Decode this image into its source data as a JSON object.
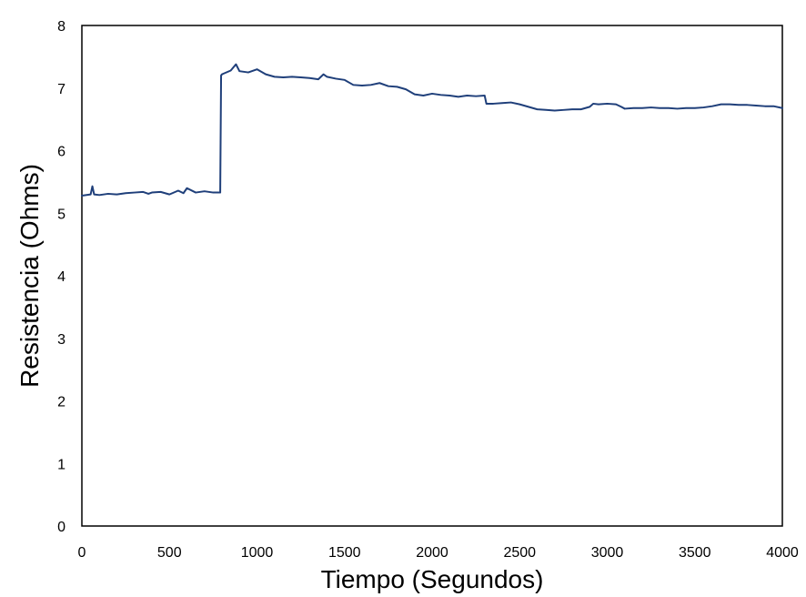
{
  "chart_data": {
    "type": "line",
    "title": "",
    "xlabel": "Tiempo (Segundos)",
    "ylabel": "Resistencia (Ohms)",
    "xlim": [
      0,
      4000
    ],
    "ylim": [
      0,
      8
    ],
    "x_ticks": [
      "0",
      "500",
      "1000",
      "1500",
      "2000",
      "2500",
      "3000",
      "3500",
      "4000"
    ],
    "y_ticks": [
      "0",
      "1",
      "2",
      "3",
      "4",
      "5",
      "6",
      "7",
      "8"
    ],
    "grid": false,
    "legend": "none",
    "series": [
      {
        "color": "#1f3f7a",
        "x": [
          0,
          50,
          60,
          70,
          100,
          150,
          200,
          250,
          300,
          350,
          380,
          400,
          450,
          500,
          550,
          580,
          600,
          650,
          700,
          750,
          790,
          795,
          800,
          850,
          880,
          900,
          950,
          1000,
          1050,
          1100,
          1150,
          1200,
          1250,
          1300,
          1350,
          1380,
          1400,
          1450,
          1500,
          1550,
          1600,
          1650,
          1700,
          1750,
          1800,
          1850,
          1900,
          1950,
          2000,
          2050,
          2100,
          2150,
          2200,
          2250,
          2300,
          2310,
          2350,
          2400,
          2450,
          2500,
          2550,
          2600,
          2650,
          2700,
          2750,
          2800,
          2850,
          2900,
          2920,
          2950,
          3000,
          3050,
          3080,
          3100,
          3150,
          3200,
          3250,
          3300,
          3350,
          3400,
          3450,
          3500,
          3550,
          3600,
          3650,
          3700,
          3750,
          3800,
          3850,
          3900,
          3950,
          4000
        ],
        "y": [
          5.28,
          5.3,
          5.43,
          5.3,
          5.29,
          5.31,
          5.3,
          5.32,
          5.33,
          5.34,
          5.31,
          5.33,
          5.34,
          5.3,
          5.36,
          5.32,
          5.4,
          5.33,
          5.35,
          5.33,
          5.33,
          7.2,
          7.22,
          7.28,
          7.38,
          7.27,
          7.25,
          7.3,
          7.22,
          7.18,
          7.17,
          7.18,
          7.17,
          7.16,
          7.14,
          7.22,
          7.18,
          7.15,
          7.13,
          7.05,
          7.04,
          7.05,
          7.08,
          7.03,
          7.02,
          6.98,
          6.9,
          6.88,
          6.91,
          6.89,
          6.88,
          6.86,
          6.88,
          6.87,
          6.88,
          6.75,
          6.75,
          6.76,
          6.77,
          6.74,
          6.7,
          6.66,
          6.65,
          6.64,
          6.65,
          6.66,
          6.66,
          6.7,
          6.75,
          6.74,
          6.75,
          6.74,
          6.7,
          6.67,
          6.68,
          6.68,
          6.69,
          6.68,
          6.68,
          6.67,
          6.68,
          6.68,
          6.69,
          6.71,
          6.74,
          6.74,
          6.73,
          6.73,
          6.72,
          6.71,
          6.71,
          6.68
        ]
      }
    ]
  }
}
